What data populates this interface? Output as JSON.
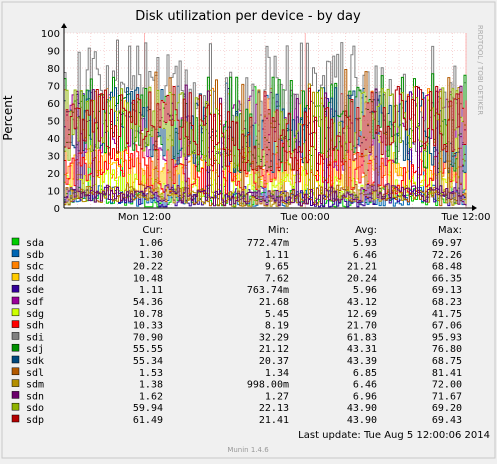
{
  "chart_data": {
    "type": "line",
    "title": "Disk utilization per device - by day",
    "ylabel": "Percent",
    "xlabel": "",
    "watermark": "RRDTOOL / TOBI OETIKER",
    "footer": "Munin 1.4.6",
    "last_update": "Last update:  Tue Aug  5 12:00:06 2014",
    "ylim": [
      0,
      100
    ],
    "y_ticks": [
      0,
      10,
      20,
      30,
      40,
      50,
      60,
      70,
      80,
      90,
      100
    ],
    "x_domain": [
      "2014-08-04 06:00",
      "2014-08-05 12:00"
    ],
    "x_ticks": [
      {
        "at": "2014-08-04 12:00",
        "label": "Mon 12:00"
      },
      {
        "at": "2014-08-05 00:00",
        "label": "Tue 00:00"
      },
      {
        "at": "2014-08-05 12:00",
        "label": "Tue 12:00"
      }
    ],
    "grid": true,
    "legend": "bottom",
    "columns": [
      "Cur:",
      "Min:",
      "Avg:",
      "Max:"
    ],
    "series": [
      {
        "name": "sda",
        "color": "#00cc00",
        "cur": "1.06",
        "min": "772.47m",
        "avg": "5.93",
        "max": "69.97",
        "avg_value": 5.93,
        "min_value": 0.77,
        "max_value": 69.97
      },
      {
        "name": "sdb",
        "color": "#0066b3",
        "cur": "1.30",
        "min": "1.11",
        "avg": "6.46",
        "max": "72.26",
        "avg_value": 6.46,
        "min_value": 1.11,
        "max_value": 72.26
      },
      {
        "name": "sdc",
        "color": "#ff8000",
        "cur": "20.22",
        "min": "9.65",
        "avg": "21.21",
        "max": "68.48",
        "avg_value": 21.21,
        "min_value": 9.65,
        "max_value": 68.48
      },
      {
        "name": "sdd",
        "color": "#ffcc00",
        "cur": "10.48",
        "min": "7.62",
        "avg": "20.24",
        "max": "66.35",
        "avg_value": 20.24,
        "min_value": 7.62,
        "max_value": 66.35
      },
      {
        "name": "sde",
        "color": "#330099",
        "cur": "1.11",
        "min": "763.74m",
        "avg": "5.96",
        "max": "69.13",
        "avg_value": 5.96,
        "min_value": 0.76,
        "max_value": 69.13
      },
      {
        "name": "sdf",
        "color": "#990099",
        "cur": "54.36",
        "min": "21.68",
        "avg": "43.12",
        "max": "68.23",
        "avg_value": 43.12,
        "min_value": 21.68,
        "max_value": 68.23
      },
      {
        "name": "sdg",
        "color": "#ccff00",
        "cur": "10.78",
        "min": "5.45",
        "avg": "12.69",
        "max": "41.75",
        "avg_value": 12.69,
        "min_value": 5.45,
        "max_value": 41.75
      },
      {
        "name": "sdh",
        "color": "#ff0000",
        "cur": "10.33",
        "min": "8.19",
        "avg": "21.70",
        "max": "67.06",
        "avg_value": 21.7,
        "min_value": 8.19,
        "max_value": 67.06
      },
      {
        "name": "sdi",
        "color": "#808080",
        "cur": "70.90",
        "min": "32.29",
        "avg": "61.83",
        "max": "95.93",
        "avg_value": 61.83,
        "min_value": 32.29,
        "max_value": 95.93
      },
      {
        "name": "sdj",
        "color": "#008f00",
        "cur": "55.55",
        "min": "21.12",
        "avg": "43.31",
        "max": "76.80",
        "avg_value": 43.31,
        "min_value": 21.12,
        "max_value": 76.8
      },
      {
        "name": "sdk",
        "color": "#00487d",
        "cur": "55.34",
        "min": "20.37",
        "avg": "43.39",
        "max": "68.75",
        "avg_value": 43.39,
        "min_value": 20.37,
        "max_value": 68.75
      },
      {
        "name": "sdl",
        "color": "#b35a00",
        "cur": "1.53",
        "min": "1.34",
        "avg": "6.85",
        "max": "81.41",
        "avg_value": 6.85,
        "min_value": 1.34,
        "max_value": 81.41
      },
      {
        "name": "sdm",
        "color": "#b38f00",
        "cur": "1.38",
        "min": "998.00m",
        "avg": "6.46",
        "max": "72.00",
        "avg_value": 6.46,
        "min_value": 1.0,
        "max_value": 72.0
      },
      {
        "name": "sdn",
        "color": "#6b006b",
        "cur": "1.62",
        "min": "1.27",
        "avg": "6.96",
        "max": "71.67",
        "avg_value": 6.96,
        "min_value": 1.27,
        "max_value": 71.67
      },
      {
        "name": "sdo",
        "color": "#8fb300",
        "cur": "59.94",
        "min": "22.13",
        "avg": "43.90",
        "max": "69.20",
        "avg_value": 43.9,
        "min_value": 22.13,
        "max_value": 69.2
      },
      {
        "name": "sdp",
        "color": "#b30000",
        "cur": "61.49",
        "min": "21.41",
        "avg": "43.90",
        "max": "69.43",
        "avg_value": 43.9,
        "min_value": 21.41,
        "max_value": 69.43
      }
    ]
  }
}
